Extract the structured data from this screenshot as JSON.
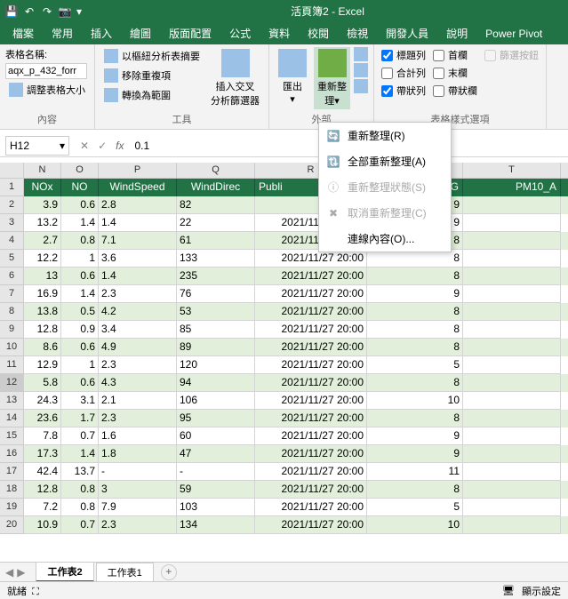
{
  "titlebar": {
    "title": "活頁簿2 - Excel"
  },
  "tabs": [
    "檔案",
    "常用",
    "插入",
    "繪圖",
    "版面配置",
    "公式",
    "資料",
    "校閱",
    "檢視",
    "開發人員",
    "說明",
    "Power Pivot"
  ],
  "ribbon": {
    "group1": {
      "label": "內容",
      "table_name_label": "表格名稱:",
      "table_name": "aqx_p_432_forr",
      "resize": "調整表格大小"
    },
    "group2": {
      "label": "工具",
      "pivot": "以樞紐分析表摘要",
      "dedup": "移除重複項",
      "convert": "轉換為範圍",
      "slicer_l1": "插入交叉",
      "slicer_l2": "分析篩選器"
    },
    "group3": {
      "label": "外部",
      "export_l1": "匯出",
      "refresh_l1": "重新整",
      "refresh_l2": "理"
    },
    "group4": {
      "label": "表格樣式選項",
      "header": "標題列",
      "first": "首欄",
      "total": "合計列",
      "last": "末欄",
      "banded": "帶狀列",
      "banded_col": "帶狀欄",
      "filter": "篩選按鈕"
    }
  },
  "dropdown": {
    "refresh": "重新整理(R)",
    "refresh_all": "全部重新整理(A)",
    "status": "重新整理狀態(S)",
    "cancel": "取消重新整理(C)",
    "conn": "連線內容(O)..."
  },
  "namebox": {
    "ref": "H12",
    "value": "0.1"
  },
  "cols": [
    "N",
    "O",
    "P",
    "Q",
    "R",
    "S",
    "T"
  ],
  "headers": [
    "NOx",
    "NO",
    "WindSpeed",
    "WindDirec",
    "Publi",
    ".5_AVG",
    "PM10_A"
  ],
  "rows": [
    {
      "n": "2",
      "nox": "3.9",
      "no": "0.6",
      "ws": "2.8",
      "wd": "82",
      "pt": "2",
      "avg": "9"
    },
    {
      "n": "3",
      "nox": "13.2",
      "no": "1.4",
      "ws": "1.4",
      "wd": "22",
      "pt": "2021/11/27 20:00",
      "avg": "9"
    },
    {
      "n": "4",
      "nox": "2.7",
      "no": "0.8",
      "ws": "7.1",
      "wd": "61",
      "pt": "2021/11/27 20:00",
      "avg": "8"
    },
    {
      "n": "5",
      "nox": "12.2",
      "no": "1",
      "ws": "3.6",
      "wd": "133",
      "pt": "2021/11/27 20:00",
      "avg": "8"
    },
    {
      "n": "6",
      "nox": "13",
      "no": "0.6",
      "ws": "1.4",
      "wd": "235",
      "pt": "2021/11/27 20:00",
      "avg": "8"
    },
    {
      "n": "7",
      "nox": "16.9",
      "no": "1.4",
      "ws": "2.3",
      "wd": "76",
      "pt": "2021/11/27 20:00",
      "avg": "9"
    },
    {
      "n": "8",
      "nox": "13.8",
      "no": "0.5",
      "ws": "4.2",
      "wd": "53",
      "pt": "2021/11/27 20:00",
      "avg": "8"
    },
    {
      "n": "9",
      "nox": "12.8",
      "no": "0.9",
      "ws": "3.4",
      "wd": "85",
      "pt": "2021/11/27 20:00",
      "avg": "8"
    },
    {
      "n": "10",
      "nox": "8.6",
      "no": "0.6",
      "ws": "4.9",
      "wd": "89",
      "pt": "2021/11/27 20:00",
      "avg": "8"
    },
    {
      "n": "11",
      "nox": "12.9",
      "no": "1",
      "ws": "2.3",
      "wd": "120",
      "pt": "2021/11/27 20:00",
      "avg": "5"
    },
    {
      "n": "12",
      "nox": "5.8",
      "no": "0.6",
      "ws": "4.3",
      "wd": "94",
      "pt": "2021/11/27 20:00",
      "avg": "8"
    },
    {
      "n": "13",
      "nox": "24.3",
      "no": "3.1",
      "ws": "2.1",
      "wd": "106",
      "pt": "2021/11/27 20:00",
      "avg": "10"
    },
    {
      "n": "14",
      "nox": "23.6",
      "no": "1.7",
      "ws": "2.3",
      "wd": "95",
      "pt": "2021/11/27 20:00",
      "avg": "8"
    },
    {
      "n": "15",
      "nox": "7.8",
      "no": "0.7",
      "ws": "1.6",
      "wd": "60",
      "pt": "2021/11/27 20:00",
      "avg": "9"
    },
    {
      "n": "16",
      "nox": "17.3",
      "no": "1.4",
      "ws": "1.8",
      "wd": "47",
      "pt": "2021/11/27 20:00",
      "avg": "9"
    },
    {
      "n": "17",
      "nox": "42.4",
      "no": "13.7",
      "ws": "-",
      "wd": "-",
      "pt": "2021/11/27 20:00",
      "avg": "11"
    },
    {
      "n": "18",
      "nox": "12.8",
      "no": "0.8",
      "ws": "3",
      "wd": "59",
      "pt": "2021/11/27 20:00",
      "avg": "8"
    },
    {
      "n": "19",
      "nox": "7.2",
      "no": "0.8",
      "ws": "7.9",
      "wd": "103",
      "pt": "2021/11/27 20:00",
      "avg": "5"
    },
    {
      "n": "20",
      "nox": "10.9",
      "no": "0.7",
      "ws": "2.3",
      "wd": "134",
      "pt": "2021/11/27 20:00",
      "avg": "10"
    }
  ],
  "sheets": {
    "tab1": "工作表2",
    "tab2": "工作表1"
  },
  "statusbar": {
    "ready": "就緒",
    "accessibility_icon": "⛶",
    "display": "顯示設定"
  },
  "colors": {
    "primary": "#217346",
    "banded": "#e2efda"
  }
}
